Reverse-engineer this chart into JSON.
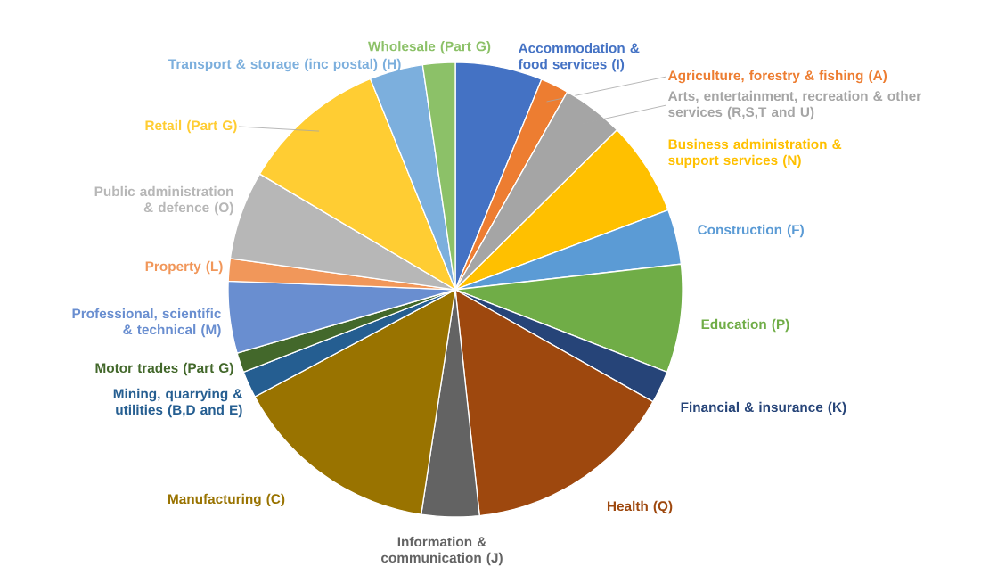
{
  "chart_data": {
    "type": "pie",
    "categories": [
      "Accommodation & food services (I)",
      "Agriculture, forestry & fishing (A)",
      "Arts, entertainment, recreation & other services (R,S,T and U)",
      "Business administration & support services (N)",
      "Construction (F)",
      "Education (P)",
      "Financial & insurance (K)",
      "Health (Q)",
      "Information & communication (J)",
      "Manufacturing (C)",
      "Mining, quarrying & utilities (B,D and E)",
      "Motor trades (Part G)",
      "Professional, scientific & technical (M)",
      "Property (L)",
      "Public administration & defence (O)",
      "Retail (Part G)",
      "Transport & storage (inc postal) (H)",
      "Wholesale (Part G)"
    ],
    "values": [
      6.2,
      2.0,
      4.4,
      6.7,
      3.9,
      7.7,
      2.3,
      15.1,
      4.1,
      14.8,
      1.9,
      1.4,
      5.1,
      1.6,
      6.3,
      10.4,
      3.8,
      2.3
    ],
    "colors": [
      "#4472c4",
      "#ed7d31",
      "#a5a5a5",
      "#ffc000",
      "#5b9bd5",
      "#70ad47",
      "#264478",
      "#9e480e",
      "#636363",
      "#997300",
      "#255e91",
      "#43682b",
      "#698ed0",
      "#f1975a",
      "#b7b7b7",
      "#ffcd33",
      "#7cafdd",
      "#8cc168"
    ]
  }
}
